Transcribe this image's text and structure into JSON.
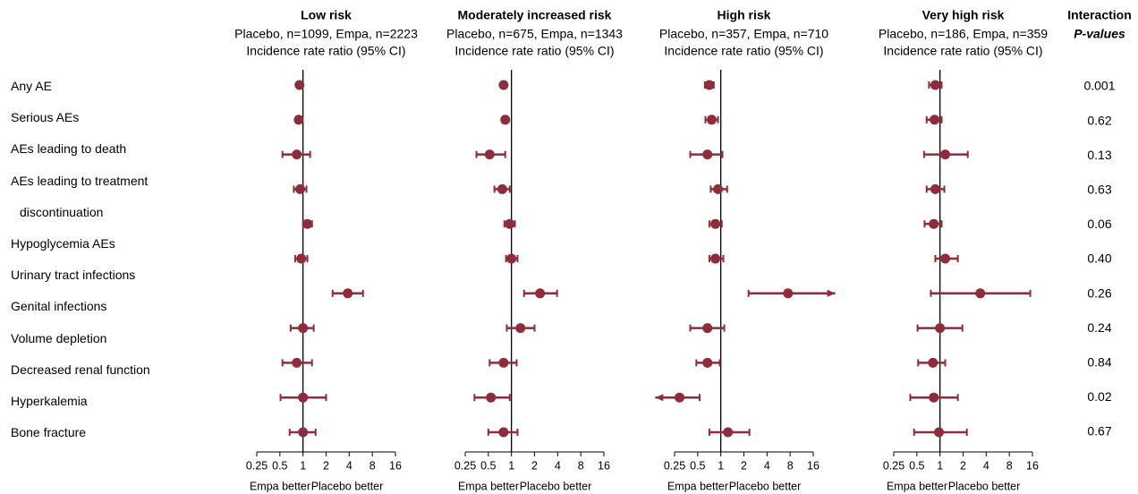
{
  "row_labels": [
    "Any AE",
    "Serious AEs",
    "AEs leading to death",
    "AEs leading to treatment discontinuation",
    "Hypoglycemia AEs",
    "Urinary tract infections",
    "Genital infections",
    "Volume depletion",
    "Decreased renal function",
    "Hyperkalemia",
    "Bone fracture"
  ],
  "p_values_header": [
    "Interaction",
    "P-values"
  ],
  "p_values": [
    "0.001",
    "0.62",
    "0.13",
    "0.63",
    "0.06",
    "0.40",
    "0.26",
    "0.24",
    "0.84",
    "0.02",
    "0.67"
  ],
  "chart_data": [
    {
      "type": "forest",
      "title": "Low risk",
      "subtitle": "Placebo, n=1099, Empa, n=2223",
      "x_label": "Incidence rate ratio (95% CI)",
      "left_label": "Empa better",
      "right_label": "Placebo better",
      "log_scale": true,
      "color": "#8e2c3c",
      "xlim": [
        0.25,
        16
      ],
      "xticks": [
        0.25,
        0.5,
        1,
        2,
        4,
        8,
        16
      ],
      "estimates": [
        0.9,
        0.88,
        0.83,
        0.92,
        1.14,
        0.95,
        3.83,
        1.0,
        0.83,
        1.0,
        1.0
      ],
      "lower": [
        0.85,
        0.82,
        0.54,
        0.76,
        1.0,
        0.79,
        2.43,
        0.69,
        0.54,
        0.51,
        0.67
      ],
      "upper": [
        0.95,
        0.95,
        1.24,
        1.11,
        1.31,
        1.14,
        6.05,
        1.38,
        1.31,
        2.0,
        1.46
      ]
    },
    {
      "type": "forest",
      "title": "Moderately increased risk",
      "subtitle": "Placebo, n=675, Empa, n=1343",
      "x_label": "Incidence rate ratio (95% CI)",
      "left_label": "Empa better",
      "right_label": "Placebo better",
      "log_scale": true,
      "color": "#8e2c3c",
      "xlim": [
        0.25,
        16
      ],
      "xticks": [
        0.25,
        0.5,
        1,
        2,
        4,
        8,
        16
      ],
      "estimates": [
        0.79,
        0.83,
        0.52,
        0.76,
        0.95,
        1.0,
        2.36,
        1.31,
        0.79,
        0.54,
        0.79
      ],
      "lower": [
        0.76,
        0.76,
        0.35,
        0.6,
        0.81,
        0.85,
        1.46,
        0.87,
        0.52,
        0.33,
        0.5
      ],
      "upper": [
        0.83,
        0.9,
        0.83,
        0.95,
        1.11,
        1.2,
        3.93,
        2.0,
        1.17,
        0.95,
        1.2
      ]
    },
    {
      "type": "forest",
      "title": "High risk",
      "subtitle": "Placebo, n=357, Empa, n=710",
      "x_label": "Incidence rate ratio (95% CI)",
      "left_label": "Empa better",
      "right_label": "Placebo better",
      "log_scale": true,
      "color": "#8e2c3c",
      "xlim": [
        0.25,
        16
      ],
      "xticks": [
        0.25,
        0.5,
        1,
        2,
        4,
        8,
        16
      ],
      "estimates": [
        0.71,
        0.76,
        0.67,
        0.92,
        0.85,
        0.85,
        7.5,
        0.67,
        0.67,
        0.29,
        1.24
      ],
      "lower": [
        0.62,
        0.63,
        0.4,
        0.74,
        0.71,
        0.71,
        2.3,
        0.4,
        0.48,
        0.14,
        0.71
      ],
      "upper": [
        0.81,
        0.92,
        1.05,
        1.21,
        1.03,
        1.08,
        31,
        1.11,
        0.97,
        0.53,
        2.36
      ]
    },
    {
      "type": "forest",
      "title": "Very high risk",
      "subtitle": "Placebo, n=186, Empa, n=359",
      "x_label": "Incidence rate ratio (95% CI)",
      "left_label": "Empa better",
      "right_label": "Placebo better",
      "log_scale": true,
      "color": "#8e2c3c",
      "xlim": [
        0.25,
        16
      ],
      "xticks": [
        0.25,
        0.5,
        1,
        2,
        4,
        8,
        16
      ],
      "estimates": [
        0.87,
        0.85,
        1.17,
        0.87,
        0.83,
        1.17,
        3.35,
        1.0,
        0.81,
        0.83,
        0.97
      ],
      "lower": [
        0.72,
        0.67,
        0.62,
        0.67,
        0.63,
        0.87,
        0.76,
        0.51,
        0.52,
        0.41,
        0.46
      ],
      "upper": [
        1.05,
        1.05,
        2.3,
        1.14,
        1.05,
        1.71,
        15.0,
        1.96,
        1.17,
        1.71,
        2.24
      ]
    }
  ]
}
